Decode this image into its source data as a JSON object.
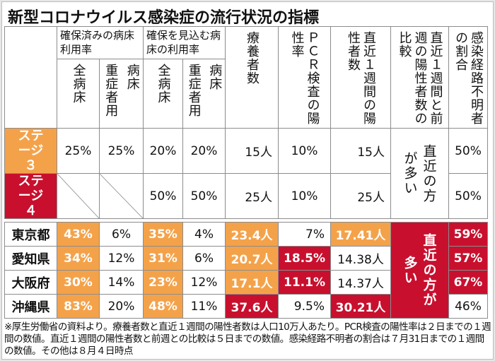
{
  "title": "新型コロナウイルス感染症の流行状況の指標",
  "header": {
    "group1": "確保済みの病床利用率",
    "group2": "確保を見込む病床の利用率",
    "all_beds": "全病床",
    "beds": "病床",
    "severe": "重症者用",
    "recuperating": "療養者数",
    "pcr": "ＰＣＲ検査の陽性率",
    "weekly_positive": "直近１週間の陽性者数",
    "compare": "直近１週間と前週の陽性者数の比較",
    "unknown_route": "感染経路不明者の割合"
  },
  "stages": [
    {
      "label": "ステージ３",
      "values": [
        "25%",
        "25%",
        "20%",
        "20%",
        "15人",
        "10%",
        "15人",
        "50%"
      ]
    },
    {
      "label": "ステージ４",
      "values": [
        "",
        "",
        "50%",
        "50%",
        "25人",
        "10%",
        "25人",
        "50%"
      ]
    }
  ],
  "stage_compare": "直近の方が多い",
  "prefectures": [
    {
      "name": "東京都",
      "values": [
        "43%",
        "6%",
        "35%",
        "4%",
        "23.4人",
        "7%",
        "17.41人",
        "59%"
      ]
    },
    {
      "name": "愛知県",
      "values": [
        "34%",
        "12%",
        "31%",
        "6%",
        "20.7人",
        "18.5%",
        "14.38人",
        "57%"
      ]
    },
    {
      "name": "大阪府",
      "values": [
        "30%",
        "14%",
        "23%",
        "12%",
        "17.1人",
        "11.1%",
        "14.37人",
        "67%"
      ]
    },
    {
      "name": "沖縄県",
      "values": [
        "83%",
        "20%",
        "48%",
        "11%",
        "37.6人",
        "9.5%",
        "30.21人",
        "46%"
      ]
    }
  ],
  "pref_compare": "直近の方が多い",
  "colors": {
    "orange": "#f4a24a",
    "red": "#c8102e"
  },
  "note": "※厚生労働省の資料より。療養者数と直近１週間の陽性者数は人口10万人あたり。PCR検査の陽性率は２日までの１週間の数値。直近１週間の陽性者数と前週との比較は５日までの数値。感染経路不明者の割合は７月31日までの１週間の数値。その他は８月４日時点"
}
